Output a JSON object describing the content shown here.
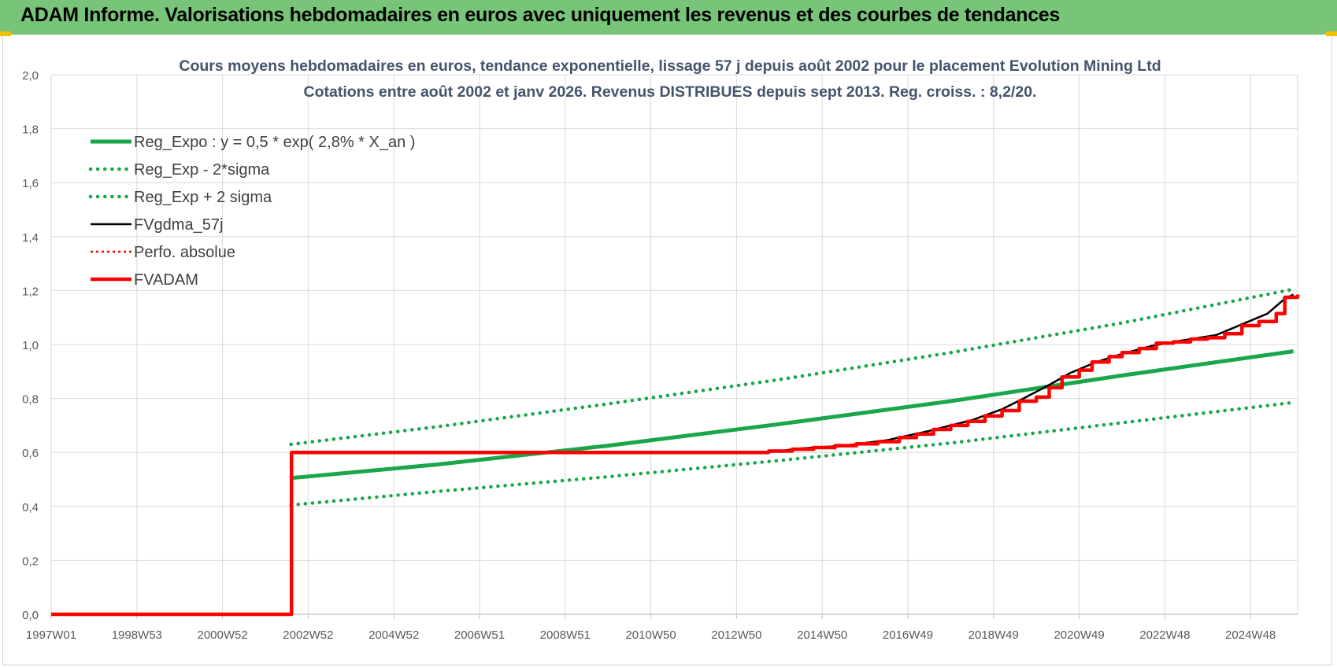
{
  "header": {
    "title": "ADAM Informe. Valorisations hebdomadaires en euros avec uniquement les revenus et des courbes de tendances"
  },
  "colors": {
    "header_bg": "#78c57a",
    "trend_green": "#1aa64a",
    "red": "#ff0000",
    "black": "#000000",
    "grid": "#d9d9d9",
    "axis_text": "#595959",
    "title_text": "#44546a"
  },
  "chart_data": {
    "type": "line",
    "title": "Cours moyens hebdomadaires en euros, tendance exponentielle, lissage 57 j depuis août 2002 pour le placement Evolution Mining Ltd",
    "subtitle": "Cotations entre août 2002 et janv 2026.  Revenus DISTRIBUES depuis sept 2013.  Reg. croiss. : 8,2/20.",
    "xlabel": "",
    "ylabel": "",
    "x_range": [
      1997.0,
      2026.1
    ],
    "ylim": [
      0,
      2
    ],
    "y_ticks": [
      "0,0",
      "0,2",
      "0,4",
      "0,6",
      "0,8",
      "1,0",
      "1,2",
      "1,4",
      "1,6",
      "1,8",
      "2,0"
    ],
    "x_ticks": [
      {
        "label": "1997W01",
        "x": 1997.0
      },
      {
        "label": "1998W53",
        "x": 1999.0
      },
      {
        "label": "2000W52",
        "x": 2001.0
      },
      {
        "label": "2002W52",
        "x": 2003.0
      },
      {
        "label": "2004W52",
        "x": 2005.0
      },
      {
        "label": "2006W51",
        "x": 2007.0
      },
      {
        "label": "2008W51",
        "x": 2009.0
      },
      {
        "label": "2010W50",
        "x": 2011.0
      },
      {
        "label": "2012W50",
        "x": 2013.0
      },
      {
        "label": "2014W50",
        "x": 2015.0
      },
      {
        "label": "2016W49",
        "x": 2017.0
      },
      {
        "label": "2018W49",
        "x": 2019.0
      },
      {
        "label": "2020W49",
        "x": 2021.0
      },
      {
        "label": "2022W48",
        "x": 2023.0
      },
      {
        "label": "2024W48",
        "x": 2025.0
      }
    ],
    "grid": true,
    "legend_position": "top-left",
    "series": [
      {
        "name": "Reg_Expo : y = 0,5 * exp( 2,8% *  X_an )",
        "color": "#1aa64a",
        "style": "solid",
        "points": [
          [
            2002.6,
            0.505
          ],
          [
            2006.0,
            0.555
          ],
          [
            2010.0,
            0.625
          ],
          [
            2014.0,
            0.705
          ],
          [
            2018.0,
            0.79
          ],
          [
            2022.0,
            0.885
          ],
          [
            2026.0,
            0.975
          ]
        ]
      },
      {
        "name": "Reg_Exp - 2*sigma",
        "color": "#1aa64a",
        "style": "dotted",
        "points": [
          [
            2002.6,
            0.405
          ],
          [
            2006.0,
            0.455
          ],
          [
            2010.0,
            0.51
          ],
          [
            2014.0,
            0.57
          ],
          [
            2018.0,
            0.635
          ],
          [
            2022.0,
            0.71
          ],
          [
            2026.0,
            0.785
          ]
        ]
      },
      {
        "name": "Reg_Exp + 2 sigma",
        "color": "#1aa64a",
        "style": "dotted",
        "points": [
          [
            2002.6,
            0.63
          ],
          [
            2006.0,
            0.695
          ],
          [
            2010.0,
            0.78
          ],
          [
            2014.0,
            0.87
          ],
          [
            2018.0,
            0.97
          ],
          [
            2022.0,
            1.08
          ],
          [
            2026.0,
            1.205
          ]
        ]
      },
      {
        "name": "FVgdma_57j",
        "color": "#000000",
        "style": "solid",
        "points": [
          [
            1997.0,
            0.0
          ],
          [
            2002.6,
            0.0
          ],
          [
            2002.61,
            0.6
          ],
          [
            2013.7,
            0.6
          ],
          [
            2014.5,
            0.615
          ],
          [
            2015.5,
            0.625
          ],
          [
            2016.5,
            0.645
          ],
          [
            2017.5,
            0.68
          ],
          [
            2018.5,
            0.72
          ],
          [
            2019.2,
            0.76
          ],
          [
            2019.7,
            0.8
          ],
          [
            2020.3,
            0.85
          ],
          [
            2020.8,
            0.895
          ],
          [
            2021.4,
            0.935
          ],
          [
            2022.0,
            0.965
          ],
          [
            2022.7,
            0.995
          ],
          [
            2023.4,
            1.015
          ],
          [
            2024.2,
            1.035
          ],
          [
            2024.8,
            1.075
          ],
          [
            2025.4,
            1.115
          ],
          [
            2025.8,
            1.17
          ],
          [
            2026.0,
            1.185
          ]
        ]
      },
      {
        "name": "Perfo. absolue",
        "color": "#ff0000",
        "style": "dotted",
        "points": [
          [
            1997.0,
            0.0
          ],
          [
            2002.6,
            0.0
          ],
          [
            2002.61,
            0.6
          ],
          [
            2013.7,
            0.6
          ],
          [
            2014.5,
            0.615
          ],
          [
            2015.5,
            0.625
          ],
          [
            2016.5,
            0.645
          ],
          [
            2017.5,
            0.68
          ],
          [
            2018.5,
            0.72
          ],
          [
            2019.2,
            0.76
          ],
          [
            2019.7,
            0.8
          ],
          [
            2020.3,
            0.85
          ],
          [
            2020.8,
            0.895
          ],
          [
            2021.4,
            0.935
          ],
          [
            2022.0,
            0.965
          ],
          [
            2022.7,
            0.995
          ],
          [
            2023.4,
            1.015
          ],
          [
            2024.2,
            1.035
          ],
          [
            2024.8,
            1.075
          ],
          [
            2025.4,
            1.115
          ],
          [
            2025.8,
            1.17
          ],
          [
            2026.0,
            1.185
          ]
        ]
      },
      {
        "name": "FVADAM",
        "color": "#ff0000",
        "style": "solid",
        "step": true,
        "points": [
          [
            1997.0,
            0.0
          ],
          [
            2002.6,
            0.0
          ],
          [
            2002.61,
            0.6
          ],
          [
            2013.7,
            0.6
          ],
          [
            2013.75,
            0.605
          ],
          [
            2014.3,
            0.612
          ],
          [
            2014.8,
            0.618
          ],
          [
            2015.3,
            0.625
          ],
          [
            2015.8,
            0.632
          ],
          [
            2016.3,
            0.64
          ],
          [
            2016.8,
            0.655
          ],
          [
            2017.2,
            0.668
          ],
          [
            2017.6,
            0.685
          ],
          [
            2018.0,
            0.7
          ],
          [
            2018.4,
            0.715
          ],
          [
            2018.8,
            0.735
          ],
          [
            2019.2,
            0.755
          ],
          [
            2019.6,
            0.79
          ],
          [
            2020.0,
            0.805
          ],
          [
            2020.3,
            0.84
          ],
          [
            2020.6,
            0.88
          ],
          [
            2021.0,
            0.905
          ],
          [
            2021.3,
            0.935
          ],
          [
            2021.7,
            0.955
          ],
          [
            2022.0,
            0.97
          ],
          [
            2022.4,
            0.985
          ],
          [
            2022.8,
            1.005
          ],
          [
            2023.2,
            1.01
          ],
          [
            2023.6,
            1.02
          ],
          [
            2024.0,
            1.025
          ],
          [
            2024.4,
            1.04
          ],
          [
            2024.8,
            1.07
          ],
          [
            2025.2,
            1.085
          ],
          [
            2025.6,
            1.115
          ],
          [
            2025.8,
            1.175
          ],
          [
            2026.1,
            1.185
          ]
        ]
      }
    ]
  }
}
